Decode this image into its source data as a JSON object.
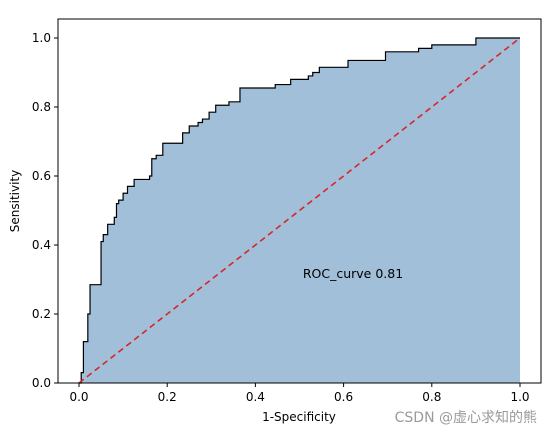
{
  "chart_data": {
    "type": "area",
    "title": "",
    "xlabel": "1-Specificity",
    "ylabel": "Sensitivity",
    "xlim": [
      0.0,
      1.0
    ],
    "ylim": [
      0.0,
      1.0
    ],
    "xticks": [
      "0.0",
      "0.2",
      "0.4",
      "0.6",
      "0.8",
      "1.0"
    ],
    "yticks": [
      "0.0",
      "0.2",
      "0.4",
      "0.6",
      "0.8",
      "1.0"
    ],
    "annotation": "ROC_curve 0.81",
    "fill_color": "#a2bfda",
    "curve_color": "#000000",
    "diagonal_color": "#d62728",
    "grid": false,
    "series": [
      {
        "style": "step",
        "x": [
          0.0,
          0.005,
          0.005,
          0.01,
          0.01,
          0.02,
          0.02,
          0.025,
          0.025,
          0.05,
          0.05,
          0.055,
          0.055,
          0.065,
          0.065,
          0.08,
          0.08,
          0.085,
          0.085,
          0.09,
          0.09,
          0.1,
          0.1,
          0.11,
          0.11,
          0.125,
          0.125,
          0.16,
          0.16,
          0.165,
          0.165,
          0.175,
          0.175,
          0.19,
          0.19,
          0.235,
          0.235,
          0.25,
          0.25,
          0.27,
          0.27,
          0.28,
          0.28,
          0.295,
          0.295,
          0.31,
          0.31,
          0.34,
          0.34,
          0.365,
          0.365,
          0.445,
          0.445,
          0.48,
          0.48,
          0.52,
          0.52,
          0.53,
          0.53,
          0.545,
          0.545,
          0.61,
          0.61,
          0.695,
          0.695,
          0.77,
          0.77,
          0.785,
          0.785,
          0.8,
          0.8,
          0.9,
          0.9,
          1.0
        ],
        "y": [
          0.0,
          0.0,
          0.03,
          0.03,
          0.12,
          0.12,
          0.2,
          0.2,
          0.285,
          0.285,
          0.41,
          0.41,
          0.43,
          0.43,
          0.46,
          0.46,
          0.48,
          0.48,
          0.52,
          0.52,
          0.53,
          0.53,
          0.55,
          0.55,
          0.57,
          0.57,
          0.59,
          0.59,
          0.6,
          0.6,
          0.65,
          0.65,
          0.66,
          0.66,
          0.695,
          0.695,
          0.725,
          0.725,
          0.745,
          0.745,
          0.755,
          0.755,
          0.765,
          0.765,
          0.785,
          0.785,
          0.805,
          0.805,
          0.815,
          0.815,
          0.855,
          0.855,
          0.865,
          0.865,
          0.88,
          0.88,
          0.89,
          0.89,
          0.9,
          0.9,
          0.915,
          0.915,
          0.935,
          0.935,
          0.96,
          0.96,
          0.97,
          0.97,
          0.97,
          0.97,
          0.98,
          0.98,
          1.0,
          1.0
        ]
      },
      {
        "style": "dashed",
        "x": [
          0.0,
          1.0
        ],
        "y": [
          0.0,
          1.0
        ]
      }
    ]
  },
  "watermark": "CSDN @虚心求知的熊"
}
